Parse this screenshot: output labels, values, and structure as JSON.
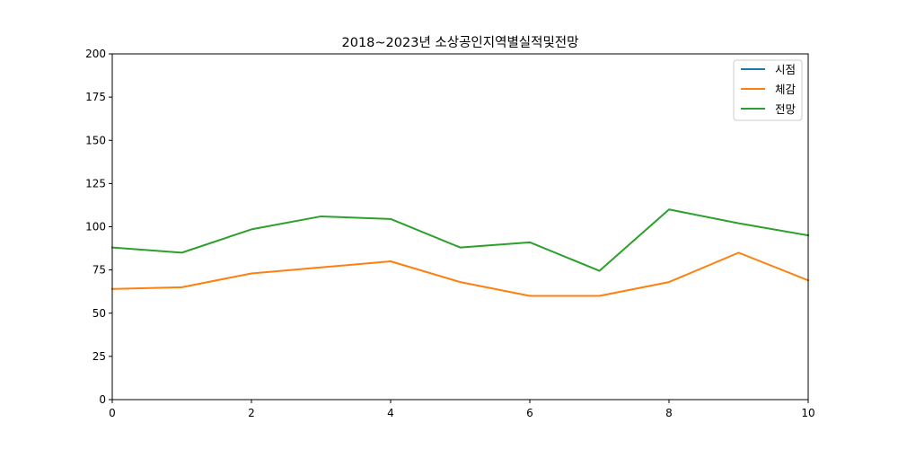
{
  "chart_data": {
    "type": "line",
    "title": "2018~2023년 소상공인지역별실적및전망",
    "xlabel": "",
    "ylabel": "",
    "xlim": [
      0,
      10
    ],
    "ylim": [
      0,
      200
    ],
    "x_ticks": [
      "0",
      "2",
      "4",
      "6",
      "8",
      "10"
    ],
    "y_ticks": [
      "0",
      "25",
      "50",
      "75",
      "100",
      "125",
      "150",
      "175",
      "200"
    ],
    "grid": false,
    "legend_position": "top-right",
    "series": [
      {
        "name": "시점",
        "color": "#1f77b4",
        "x": [],
        "values": []
      },
      {
        "name": "체감",
        "color": "#ff7f0e",
        "x": [
          0,
          1,
          2,
          3,
          4,
          5,
          6,
          7,
          8,
          9,
          10
        ],
        "values": [
          64,
          65,
          73,
          76.5,
          80,
          68,
          60,
          60,
          68,
          85,
          69
        ]
      },
      {
        "name": "전망",
        "color": "#2ca02c",
        "x": [
          0,
          1,
          2,
          3,
          4,
          5,
          6,
          7,
          8,
          9,
          10
        ],
        "values": [
          88,
          85,
          98.5,
          106,
          104.5,
          88,
          91,
          74.5,
          110,
          102,
          95
        ]
      }
    ]
  }
}
